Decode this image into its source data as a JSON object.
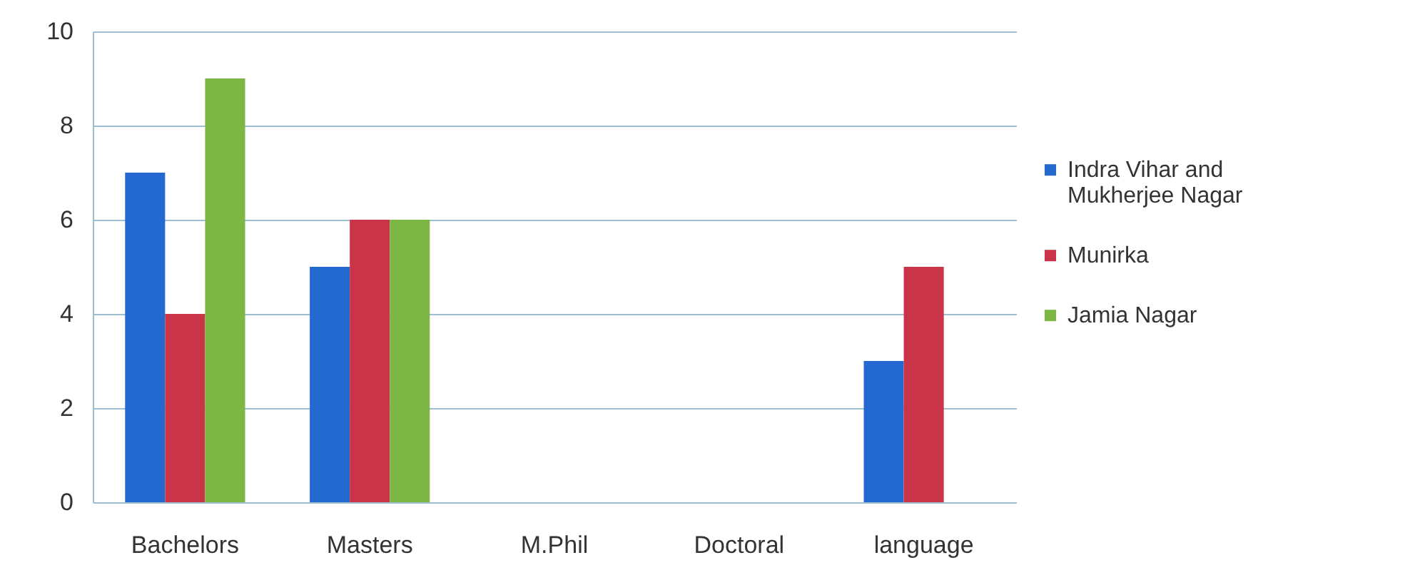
{
  "chart_data": {
    "type": "bar",
    "categories": [
      "Bachelors",
      "Masters",
      "M.Phil",
      "Doctoral",
      "language"
    ],
    "series": [
      {
        "name": "Indra Vihar and Mukherjee Nagar",
        "color": "#2469cf",
        "values": [
          7,
          5,
          0,
          0,
          3
        ]
      },
      {
        "name": "Munirka",
        "color": "#c93448",
        "values": [
          4,
          6,
          0,
          0,
          5
        ]
      },
      {
        "name": "Jamia Nagar",
        "color": "#7cb644",
        "values": [
          9,
          6,
          0,
          0,
          0
        ]
      }
    ],
    "ylim": [
      0,
      10
    ],
    "yticks": [
      0,
      2,
      4,
      6,
      8,
      10
    ],
    "grid": "y",
    "legend": "right"
  }
}
